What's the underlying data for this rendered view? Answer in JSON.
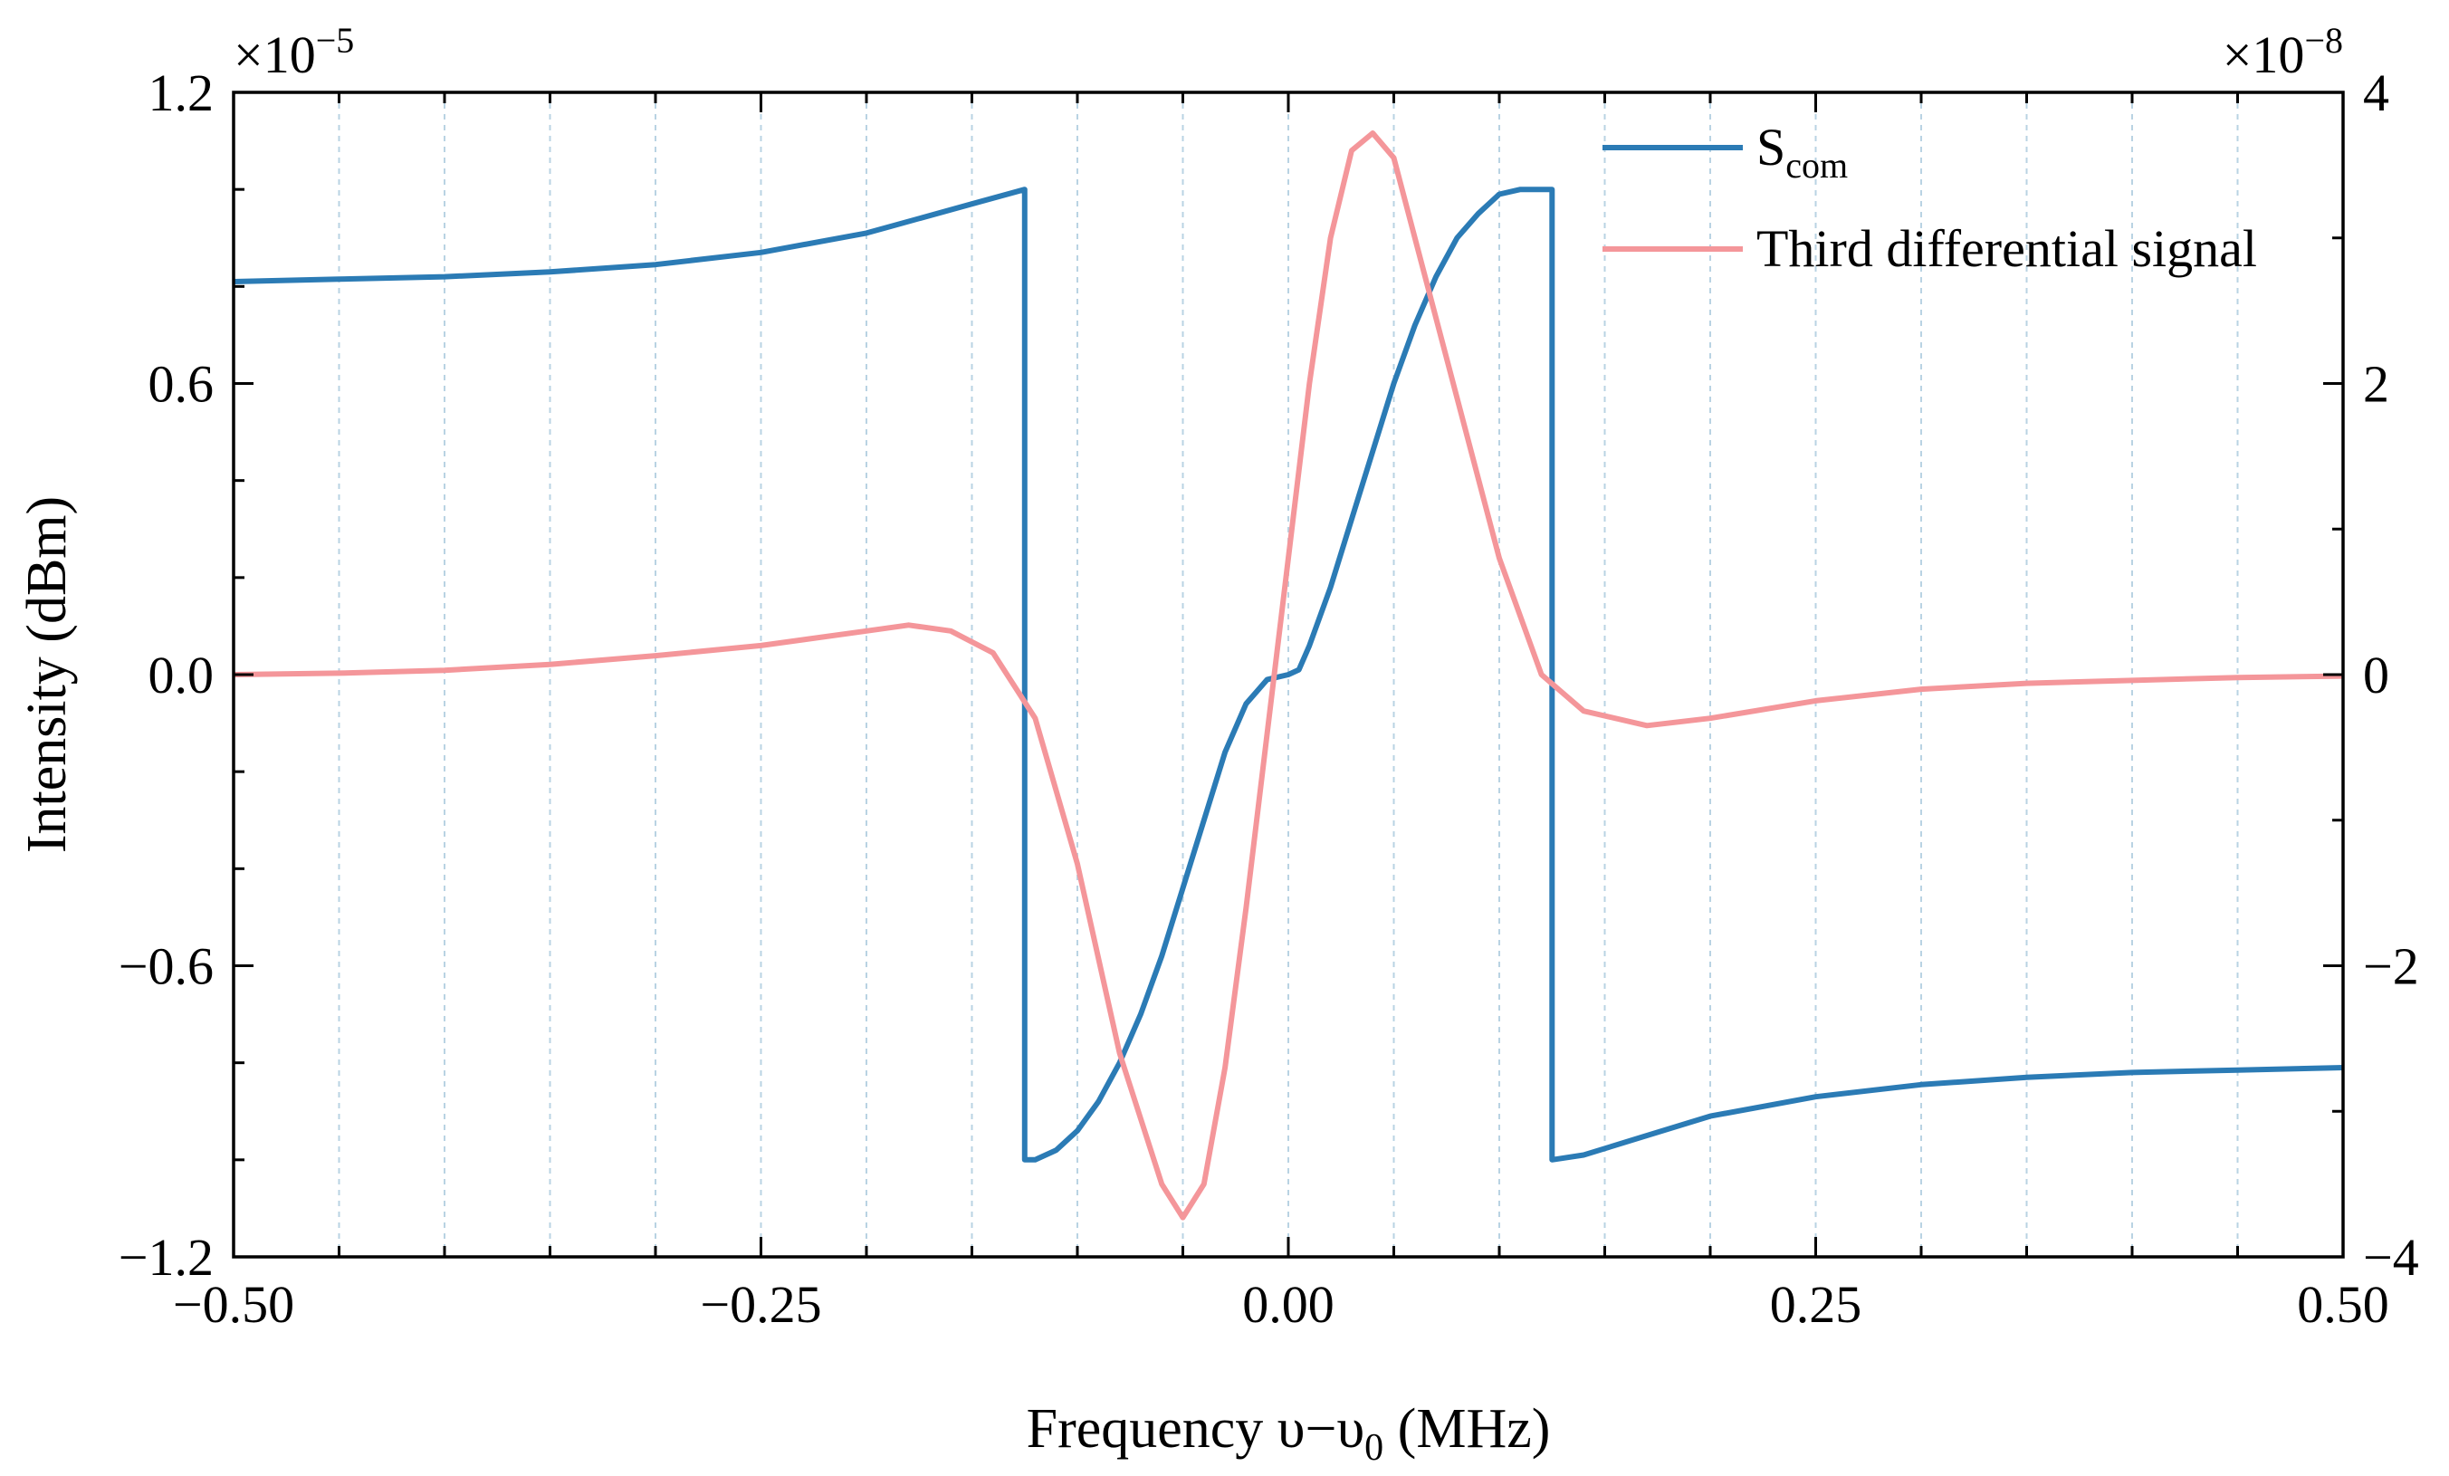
{
  "chart_data": {
    "type": "line",
    "x_label_parts": [
      "Frequency ",
      "υ",
      "−",
      "υ",
      "0",
      " (MHz)"
    ],
    "y_label_left": "Intensity (dBm)",
    "x_ticks": [
      "−0.50",
      "−0.25",
      "0.00",
      "0.25",
      "0.50"
    ],
    "x_tick_values": [
      -0.5,
      -0.25,
      0.0,
      0.25,
      0.5
    ],
    "y_left_ticks": [
      "1.2",
      "0.6",
      "0.0",
      "−0.6",
      "−1.2"
    ],
    "y_left_tick_values": [
      1.2,
      0.6,
      0.0,
      -0.6,
      -1.2
    ],
    "y_right_ticks": [
      "4",
      "2",
      "0",
      "−2",
      "−4"
    ],
    "y_right_tick_values": [
      4,
      2,
      0,
      -2,
      -4
    ],
    "y_left_exponent": {
      "base": "×10",
      "power": "−5"
    },
    "y_right_exponent": {
      "base": "×10",
      "power": "−8"
    },
    "xlim": [
      -0.5,
      0.5
    ],
    "ylim_left": [
      -1.2,
      1.2
    ],
    "ylim_right": [
      -4,
      4
    ],
    "grid": "vertical dashed",
    "legend_position": "top-right",
    "legend": {
      "scom_main": "S",
      "scom_sub": "com",
      "third": "Third differential signal"
    },
    "series": [
      {
        "name": "S_com",
        "axis": "left",
        "color": "#2b7bb5",
        "x": [
          -0.5,
          -0.45,
          -0.4,
          -0.35,
          -0.3,
          -0.25,
          -0.2,
          -0.15,
          -0.125,
          -0.125,
          -0.12,
          -0.11,
          -0.1,
          -0.09,
          -0.08,
          -0.07,
          -0.06,
          -0.05,
          -0.04,
          -0.03,
          -0.02,
          -0.01,
          0.0,
          0.005,
          0.01,
          0.02,
          0.03,
          0.04,
          0.05,
          0.06,
          0.07,
          0.08,
          0.09,
          0.1,
          0.11,
          0.125,
          0.125,
          0.14,
          0.17,
          0.2,
          0.25,
          0.3,
          0.35,
          0.4,
          0.45,
          0.5
        ],
        "y": [
          0.81,
          0.815,
          0.82,
          0.83,
          0.845,
          0.87,
          0.91,
          0.97,
          1.0,
          -1.0,
          -1.0,
          -0.98,
          -0.94,
          -0.88,
          -0.8,
          -0.7,
          -0.58,
          -0.44,
          -0.3,
          -0.16,
          -0.06,
          -0.01,
          0.0,
          0.01,
          0.06,
          0.18,
          0.32,
          0.46,
          0.6,
          0.72,
          0.82,
          0.9,
          0.95,
          0.99,
          1.0,
          1.0,
          -1.0,
          -0.99,
          -0.95,
          -0.91,
          -0.87,
          -0.845,
          -0.83,
          -0.82,
          -0.815,
          -0.81
        ]
      },
      {
        "name": "Third differential signal",
        "axis": "right",
        "color": "#f4969a",
        "x": [
          -0.5,
          -0.45,
          -0.4,
          -0.35,
          -0.3,
          -0.25,
          -0.2,
          -0.18,
          -0.16,
          -0.14,
          -0.12,
          -0.1,
          -0.08,
          -0.06,
          -0.05,
          -0.04,
          -0.03,
          -0.02,
          -0.01,
          0.0,
          0.01,
          0.02,
          0.03,
          0.04,
          0.05,
          0.06,
          0.08,
          0.1,
          0.12,
          0.14,
          0.17,
          0.2,
          0.25,
          0.3,
          0.35,
          0.4,
          0.45,
          0.5
        ],
        "y": [
          0.0,
          0.01,
          0.03,
          0.07,
          0.13,
          0.2,
          0.3,
          0.34,
          0.3,
          0.15,
          -0.3,
          -1.3,
          -2.6,
          -3.5,
          -3.73,
          -3.5,
          -2.7,
          -1.6,
          -0.4,
          0.8,
          2.0,
          3.0,
          3.6,
          3.72,
          3.55,
          3.0,
          1.9,
          0.8,
          0.0,
          -0.25,
          -0.35,
          -0.3,
          -0.18,
          -0.1,
          -0.06,
          -0.04,
          -0.02,
          -0.01
        ]
      }
    ]
  }
}
